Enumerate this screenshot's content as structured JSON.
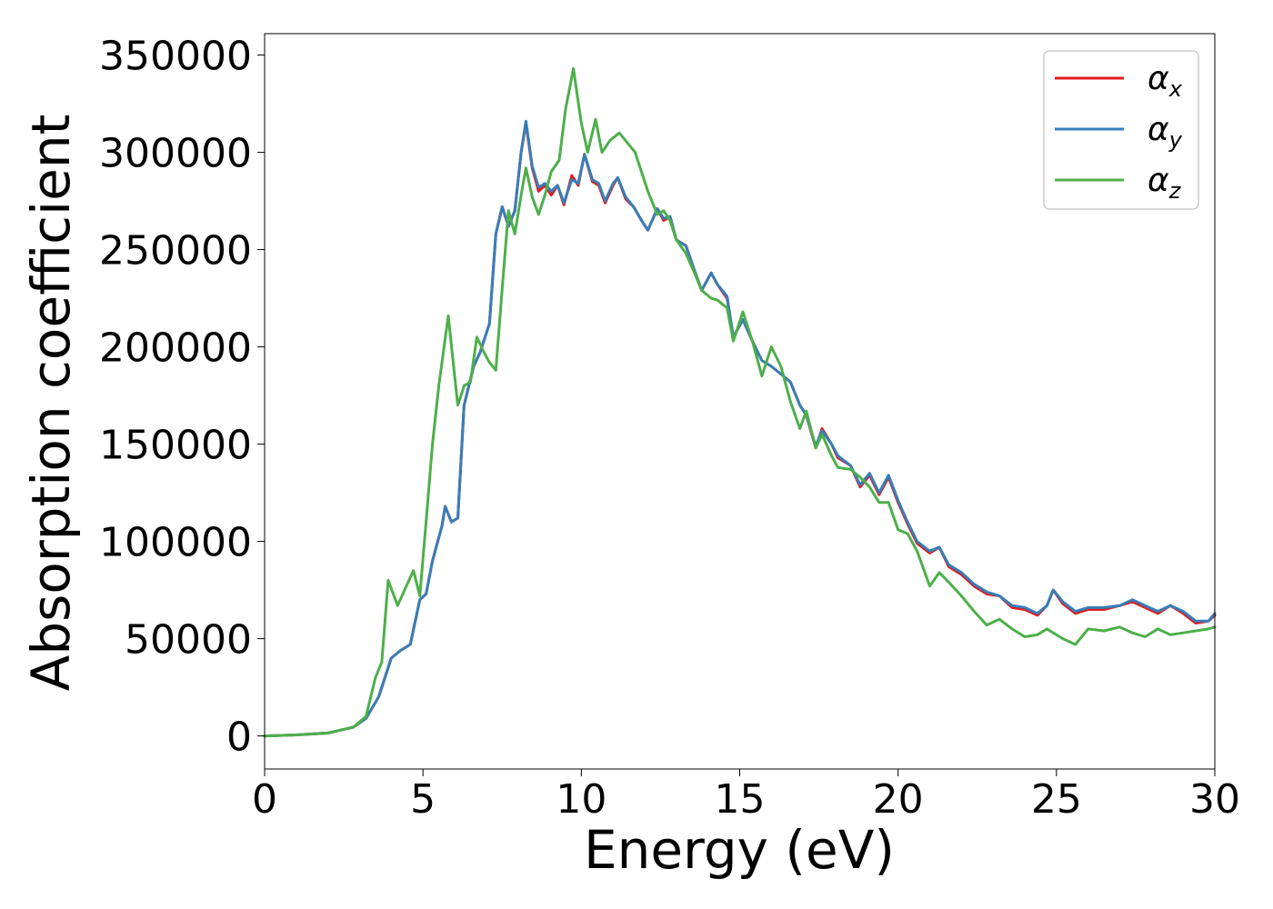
{
  "chart_data": {
    "type": "line",
    "title": "",
    "xlabel": "Energy (eV)",
    "ylabel": "Absorption coefficient",
    "xlim": [
      0,
      30
    ],
    "ylim": [
      -17000,
      361000
    ],
    "xticks": [
      0,
      5,
      10,
      15,
      20,
      25,
      30
    ],
    "yticks": [
      0,
      50000,
      100000,
      150000,
      200000,
      250000,
      300000,
      350000
    ],
    "grid": false,
    "legend_position": "top-right",
    "series": [
      {
        "name": "αx",
        "legend_base": "α",
        "legend_sub": "x",
        "color": "#e41a1c",
        "points": [
          [
            0,
            0
          ],
          [
            1,
            500
          ],
          [
            2,
            1500
          ],
          [
            2.8,
            4500
          ],
          [
            3.2,
            9000
          ],
          [
            3.6,
            20000
          ],
          [
            4.0,
            40000
          ],
          [
            4.3,
            44000
          ],
          [
            4.6,
            47000
          ],
          [
            4.9,
            70000
          ],
          [
            5.1,
            73000
          ],
          [
            5.3,
            90000
          ],
          [
            5.6,
            108000
          ],
          [
            5.7,
            118000
          ],
          [
            5.9,
            110000
          ],
          [
            6.1,
            112000
          ],
          [
            6.3,
            170000
          ],
          [
            6.6,
            190000
          ],
          [
            6.8,
            197000
          ],
          [
            7.1,
            212000
          ],
          [
            7.3,
            258000
          ],
          [
            7.5,
            272000
          ],
          [
            7.7,
            262000
          ],
          [
            7.9,
            270000
          ],
          [
            8.1,
            300000
          ],
          [
            8.25,
            315000
          ],
          [
            8.45,
            292000
          ],
          [
            8.65,
            280000
          ],
          [
            8.85,
            283000
          ],
          [
            9.05,
            278000
          ],
          [
            9.25,
            283000
          ],
          [
            9.45,
            273000
          ],
          [
            9.7,
            288000
          ],
          [
            9.9,
            283000
          ],
          [
            10.1,
            299000
          ],
          [
            10.35,
            285000
          ],
          [
            10.55,
            283000
          ],
          [
            10.75,
            274000
          ],
          [
            11.0,
            283000
          ],
          [
            11.15,
            287000
          ],
          [
            11.4,
            276000
          ],
          [
            11.65,
            272000
          ],
          [
            11.9,
            265000
          ],
          [
            12.1,
            260000
          ],
          [
            12.4,
            271000
          ],
          [
            12.6,
            265000
          ],
          [
            12.8,
            267000
          ],
          [
            13.0,
            255000
          ],
          [
            13.3,
            252000
          ],
          [
            13.6,
            238000
          ],
          [
            13.8,
            229000
          ],
          [
            14.1,
            238000
          ],
          [
            14.3,
            232000
          ],
          [
            14.6,
            225000
          ],
          [
            14.8,
            205000
          ],
          [
            15.1,
            214000
          ],
          [
            15.4,
            203000
          ],
          [
            15.7,
            193000
          ],
          [
            16.0,
            190000
          ],
          [
            16.3,
            186000
          ],
          [
            16.6,
            182000
          ],
          [
            16.9,
            170000
          ],
          [
            17.1,
            165000
          ],
          [
            17.4,
            148000
          ],
          [
            17.6,
            158000
          ],
          [
            17.9,
            150000
          ],
          [
            18.1,
            143000
          ],
          [
            18.5,
            139000
          ],
          [
            18.8,
            128000
          ],
          [
            19.1,
            134000
          ],
          [
            19.4,
            124000
          ],
          [
            19.7,
            133000
          ],
          [
            20.0,
            120000
          ],
          [
            20.3,
            109000
          ],
          [
            20.6,
            99000
          ],
          [
            21.0,
            94000
          ],
          [
            21.3,
            97000
          ],
          [
            21.6,
            87000
          ],
          [
            22.0,
            83000
          ],
          [
            22.4,
            77000
          ],
          [
            22.8,
            73000
          ],
          [
            23.2,
            72000
          ],
          [
            23.6,
            66000
          ],
          [
            24.0,
            65000
          ],
          [
            24.4,
            62000
          ],
          [
            24.7,
            67000
          ],
          [
            24.9,
            75000
          ],
          [
            25.2,
            68000
          ],
          [
            25.6,
            63000
          ],
          [
            26.0,
            65000
          ],
          [
            26.5,
            65000
          ],
          [
            27.0,
            67000
          ],
          [
            27.4,
            69000
          ],
          [
            27.8,
            66000
          ],
          [
            28.2,
            63000
          ],
          [
            28.6,
            67000
          ],
          [
            29.0,
            63000
          ],
          [
            29.4,
            58000
          ],
          [
            29.8,
            59000
          ],
          [
            30.0,
            62000
          ]
        ]
      },
      {
        "name": "αy",
        "legend_base": "α",
        "legend_sub": "y",
        "color": "#377eb8",
        "points": [
          [
            0,
            0
          ],
          [
            1,
            500
          ],
          [
            2,
            1500
          ],
          [
            2.8,
            4500
          ],
          [
            3.2,
            9000
          ],
          [
            3.6,
            20000
          ],
          [
            4.0,
            40000
          ],
          [
            4.3,
            44000
          ],
          [
            4.6,
            47000
          ],
          [
            4.9,
            70000
          ],
          [
            5.1,
            73000
          ],
          [
            5.3,
            90000
          ],
          [
            5.6,
            108000
          ],
          [
            5.7,
            118000
          ],
          [
            5.9,
            110000
          ],
          [
            6.1,
            112000
          ],
          [
            6.3,
            170000
          ],
          [
            6.6,
            190000
          ],
          [
            6.8,
            197000
          ],
          [
            7.1,
            212000
          ],
          [
            7.3,
            258000
          ],
          [
            7.5,
            272000
          ],
          [
            7.7,
            262000
          ],
          [
            7.9,
            270000
          ],
          [
            8.1,
            300000
          ],
          [
            8.25,
            316000
          ],
          [
            8.45,
            293000
          ],
          [
            8.65,
            282000
          ],
          [
            8.85,
            284000
          ],
          [
            9.05,
            280000
          ],
          [
            9.25,
            283000
          ],
          [
            9.45,
            274000
          ],
          [
            9.7,
            286000
          ],
          [
            9.9,
            284000
          ],
          [
            10.1,
            299000
          ],
          [
            10.35,
            286000
          ],
          [
            10.55,
            284000
          ],
          [
            10.75,
            275000
          ],
          [
            11.0,
            284000
          ],
          [
            11.15,
            287000
          ],
          [
            11.4,
            277000
          ],
          [
            11.65,
            272000
          ],
          [
            11.9,
            265000
          ],
          [
            12.1,
            260000
          ],
          [
            12.4,
            271000
          ],
          [
            12.6,
            266000
          ],
          [
            12.8,
            267000
          ],
          [
            13.0,
            255000
          ],
          [
            13.3,
            252000
          ],
          [
            13.6,
            238000
          ],
          [
            13.8,
            229000
          ],
          [
            14.1,
            238000
          ],
          [
            14.3,
            232000
          ],
          [
            14.6,
            226000
          ],
          [
            14.8,
            205000
          ],
          [
            15.1,
            214000
          ],
          [
            15.4,
            203000
          ],
          [
            15.7,
            193000
          ],
          [
            16.0,
            190000
          ],
          [
            16.3,
            186000
          ],
          [
            16.6,
            182000
          ],
          [
            16.9,
            170000
          ],
          [
            17.1,
            165000
          ],
          [
            17.4,
            149000
          ],
          [
            17.6,
            157000
          ],
          [
            17.9,
            150000
          ],
          [
            18.1,
            144000
          ],
          [
            18.5,
            139000
          ],
          [
            18.8,
            129000
          ],
          [
            19.1,
            135000
          ],
          [
            19.4,
            125000
          ],
          [
            19.7,
            134000
          ],
          [
            20.0,
            121000
          ],
          [
            20.3,
            110000
          ],
          [
            20.6,
            100000
          ],
          [
            21.0,
            95000
          ],
          [
            21.3,
            97000
          ],
          [
            21.6,
            88000
          ],
          [
            22.0,
            84000
          ],
          [
            22.4,
            78000
          ],
          [
            22.8,
            74000
          ],
          [
            23.2,
            72000
          ],
          [
            23.6,
            67000
          ],
          [
            24.0,
            66000
          ],
          [
            24.4,
            63000
          ],
          [
            24.7,
            67000
          ],
          [
            24.9,
            75000
          ],
          [
            25.2,
            69000
          ],
          [
            25.6,
            64000
          ],
          [
            26.0,
            66000
          ],
          [
            26.5,
            66000
          ],
          [
            27.0,
            67000
          ],
          [
            27.4,
            70000
          ],
          [
            27.8,
            67000
          ],
          [
            28.2,
            64000
          ],
          [
            28.6,
            67000
          ],
          [
            29.0,
            64000
          ],
          [
            29.4,
            59000
          ],
          [
            29.8,
            59000
          ],
          [
            30.0,
            63000
          ]
        ]
      },
      {
        "name": "αz",
        "legend_base": "α",
        "legend_sub": "z",
        "color": "#4daf4a",
        "points": [
          [
            0,
            0
          ],
          [
            1,
            500
          ],
          [
            2,
            1500
          ],
          [
            2.8,
            4500
          ],
          [
            3.2,
            10000
          ],
          [
            3.5,
            30000
          ],
          [
            3.7,
            38000
          ],
          [
            3.9,
            80000
          ],
          [
            4.2,
            67000
          ],
          [
            4.5,
            78000
          ],
          [
            4.7,
            85000
          ],
          [
            4.9,
            72000
          ],
          [
            5.1,
            110000
          ],
          [
            5.3,
            150000
          ],
          [
            5.5,
            180000
          ],
          [
            5.8,
            216000
          ],
          [
            6.0,
            185000
          ],
          [
            6.1,
            170000
          ],
          [
            6.3,
            180000
          ],
          [
            6.5,
            182000
          ],
          [
            6.7,
            205000
          ],
          [
            6.9,
            198000
          ],
          [
            7.1,
            192000
          ],
          [
            7.3,
            188000
          ],
          [
            7.5,
            230000
          ],
          [
            7.7,
            270000
          ],
          [
            7.9,
            258000
          ],
          [
            8.1,
            278000
          ],
          [
            8.25,
            292000
          ],
          [
            8.45,
            277000
          ],
          [
            8.65,
            268000
          ],
          [
            8.85,
            278000
          ],
          [
            9.05,
            290000
          ],
          [
            9.3,
            296000
          ],
          [
            9.5,
            322000
          ],
          [
            9.75,
            343000
          ],
          [
            10.0,
            315000
          ],
          [
            10.2,
            300000
          ],
          [
            10.45,
            317000
          ],
          [
            10.65,
            300000
          ],
          [
            10.9,
            306000
          ],
          [
            11.2,
            310000
          ],
          [
            11.45,
            305000
          ],
          [
            11.7,
            300000
          ],
          [
            11.9,
            290000
          ],
          [
            12.1,
            280000
          ],
          [
            12.4,
            268000
          ],
          [
            12.6,
            270000
          ],
          [
            12.8,
            265000
          ],
          [
            13.0,
            255000
          ],
          [
            13.3,
            248000
          ],
          [
            13.6,
            237000
          ],
          [
            13.8,
            229000
          ],
          [
            14.1,
            225000
          ],
          [
            14.3,
            224000
          ],
          [
            14.6,
            220000
          ],
          [
            14.8,
            203000
          ],
          [
            15.1,
            218000
          ],
          [
            15.4,
            203000
          ],
          [
            15.7,
            185000
          ],
          [
            16.0,
            200000
          ],
          [
            16.3,
            190000
          ],
          [
            16.6,
            172000
          ],
          [
            16.9,
            158000
          ],
          [
            17.1,
            167000
          ],
          [
            17.4,
            148000
          ],
          [
            17.6,
            155000
          ],
          [
            17.9,
            144000
          ],
          [
            18.1,
            138000
          ],
          [
            18.5,
            137000
          ],
          [
            18.8,
            133000
          ],
          [
            19.1,
            128000
          ],
          [
            19.4,
            120000
          ],
          [
            19.7,
            120000
          ],
          [
            20.0,
            106000
          ],
          [
            20.3,
            104000
          ],
          [
            20.6,
            95000
          ],
          [
            21.0,
            77000
          ],
          [
            21.3,
            84000
          ],
          [
            21.6,
            79000
          ],
          [
            22.0,
            72000
          ],
          [
            22.4,
            64000
          ],
          [
            22.8,
            57000
          ],
          [
            23.2,
            60000
          ],
          [
            23.6,
            55000
          ],
          [
            24.0,
            51000
          ],
          [
            24.4,
            52000
          ],
          [
            24.7,
            55000
          ],
          [
            24.9,
            53000
          ],
          [
            25.2,
            50000
          ],
          [
            25.6,
            47000
          ],
          [
            26.0,
            55000
          ],
          [
            26.5,
            54000
          ],
          [
            27.0,
            56000
          ],
          [
            27.4,
            53000
          ],
          [
            27.8,
            51000
          ],
          [
            28.2,
            55000
          ],
          [
            28.6,
            52000
          ],
          [
            29.0,
            53000
          ],
          [
            29.4,
            54000
          ],
          [
            29.8,
            55000
          ],
          [
            30.0,
            56000
          ]
        ]
      }
    ]
  }
}
